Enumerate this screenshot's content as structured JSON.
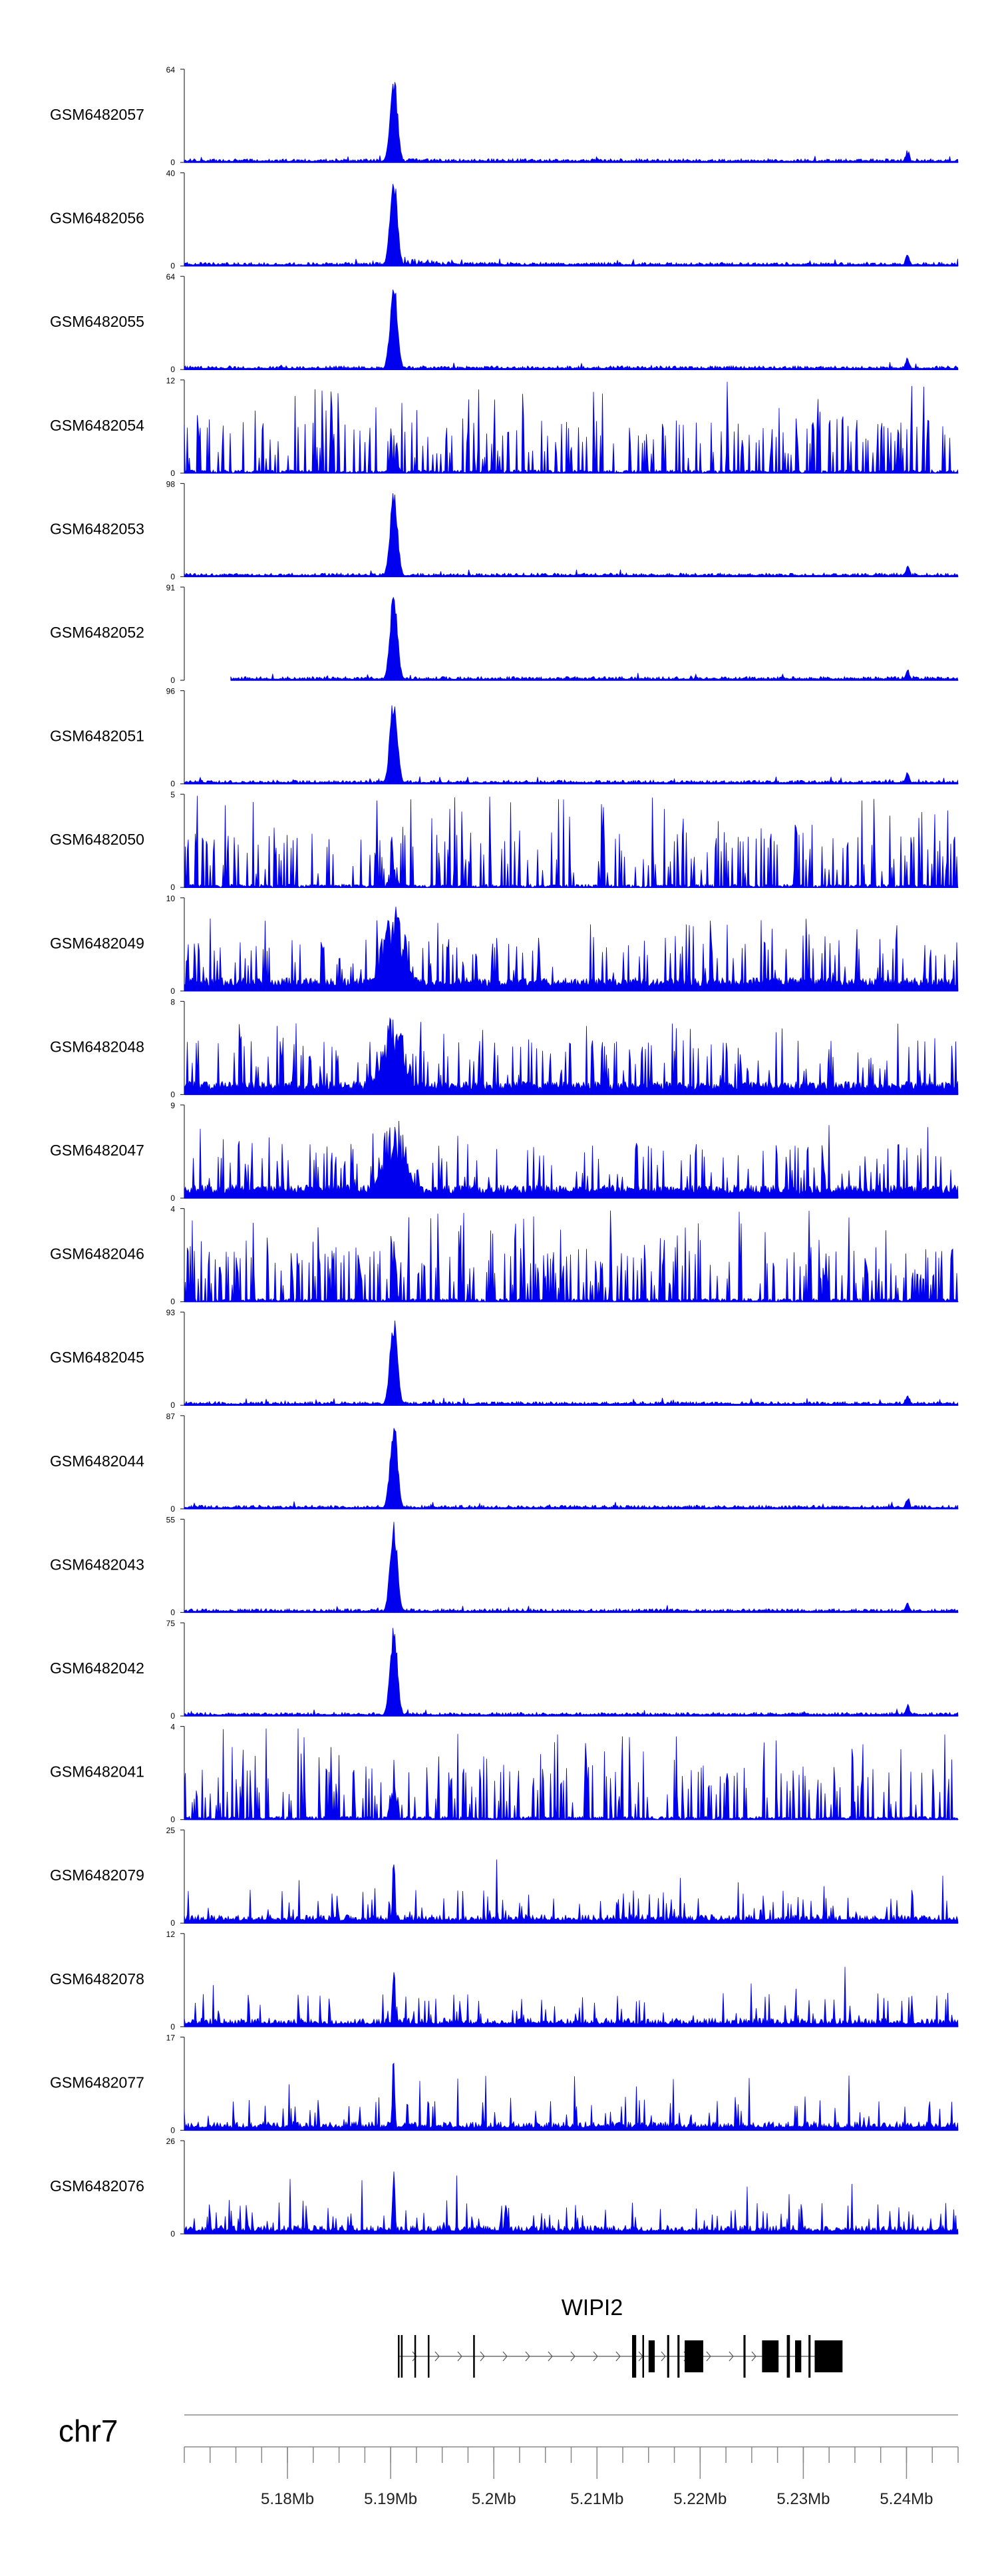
{
  "chart_data": {
    "type": "area",
    "chromosome": "chr7",
    "xlim_mb": [
      5.17,
      5.245
    ],
    "ticks": [
      {
        "pos": 5.18,
        "label": "5.18Mb"
      },
      {
        "pos": 5.19,
        "label": "5.19Mb"
      },
      {
        "pos": 5.2,
        "label": "5.2Mb"
      },
      {
        "pos": 5.21,
        "label": "5.21Mb"
      },
      {
        "pos": 5.22,
        "label": "5.22Mb"
      },
      {
        "pos": 5.23,
        "label": "5.23Mb"
      },
      {
        "pos": 5.24,
        "label": "5.24Mb"
      }
    ],
    "minor_tick_step_mb": 0.0025,
    "gene": {
      "name": "WIPI2",
      "strand": "+",
      "start_mb": 5.1907,
      "end_mb": 5.2336,
      "exons_mb": [
        [
          5.1907,
          5.19078
        ],
        [
          5.191,
          5.19108
        ],
        [
          5.1923,
          5.1924
        ],
        [
          5.1936,
          5.19367
        ],
        [
          5.198,
          5.19807
        ],
        [
          5.2134,
          5.2138
        ],
        [
          5.2144,
          5.2145
        ],
        [
          5.215,
          5.2156
        ],
        [
          5.2168,
          5.217
        ],
        [
          5.2178,
          5.218
        ],
        [
          5.2185,
          5.2203
        ],
        [
          5.2242,
          5.2244
        ],
        [
          5.226,
          5.2276
        ],
        [
          5.2284,
          5.2287
        ],
        [
          5.2292,
          5.2298
        ],
        [
          5.2305,
          5.2307
        ],
        [
          5.2311,
          5.2338
        ]
      ]
    },
    "peak_mb": 5.1903,
    "track_color": "#0000ee",
    "series": [
      {
        "name": "GSM6482057",
        "ymax": 64,
        "type": "sharp",
        "start_mb": 5.17
      },
      {
        "name": "GSM6482056",
        "ymax": 40,
        "type": "sharp",
        "start_mb": 5.17
      },
      {
        "name": "GSM6482055",
        "ymax": 64,
        "type": "sharp",
        "start_mb": 5.17
      },
      {
        "name": "GSM6482054",
        "ymax": 12,
        "type": "noisy",
        "start_mb": 5.17
      },
      {
        "name": "GSM6482053",
        "ymax": 98,
        "type": "sharp",
        "start_mb": 5.17
      },
      {
        "name": "GSM6482052",
        "ymax": 91,
        "type": "sharp",
        "start_mb": 5.1745
      },
      {
        "name": "GSM6482051",
        "ymax": 96,
        "type": "sharp",
        "start_mb": 5.17
      },
      {
        "name": "GSM6482050",
        "ymax": 5,
        "type": "noisy",
        "start_mb": 5.17
      },
      {
        "name": "GSM6482049",
        "ymax": 10,
        "type": "mid",
        "start_mb": 5.17
      },
      {
        "name": "GSM6482048",
        "ymax": 8,
        "type": "mid",
        "start_mb": 5.17
      },
      {
        "name": "GSM6482047",
        "ymax": 9,
        "type": "mid",
        "start_mb": 5.17
      },
      {
        "name": "GSM6482046",
        "ymax": 4,
        "type": "noisy",
        "start_mb": 5.17
      },
      {
        "name": "GSM6482045",
        "ymax": 93,
        "type": "sharp",
        "start_mb": 5.17
      },
      {
        "name": "GSM6482044",
        "ymax": 87,
        "type": "sharp",
        "start_mb": 5.17
      },
      {
        "name": "GSM6482043",
        "ymax": 55,
        "type": "sharp",
        "start_mb": 5.17
      },
      {
        "name": "GSM6482042",
        "ymax": 75,
        "type": "sharp",
        "start_mb": 5.17
      },
      {
        "name": "GSM6482041",
        "ymax": 4,
        "type": "noisy",
        "start_mb": 5.17
      },
      {
        "name": "GSM6482079",
        "ymax": 25,
        "type": "spiky",
        "start_mb": 5.17
      },
      {
        "name": "GSM6482078",
        "ymax": 12,
        "type": "spiky",
        "start_mb": 5.17
      },
      {
        "name": "GSM6482077",
        "ymax": 17,
        "type": "spiky",
        "start_mb": 5.17
      },
      {
        "name": "GSM6482076",
        "ymax": 26,
        "type": "spiky",
        "start_mb": 5.17
      }
    ]
  }
}
